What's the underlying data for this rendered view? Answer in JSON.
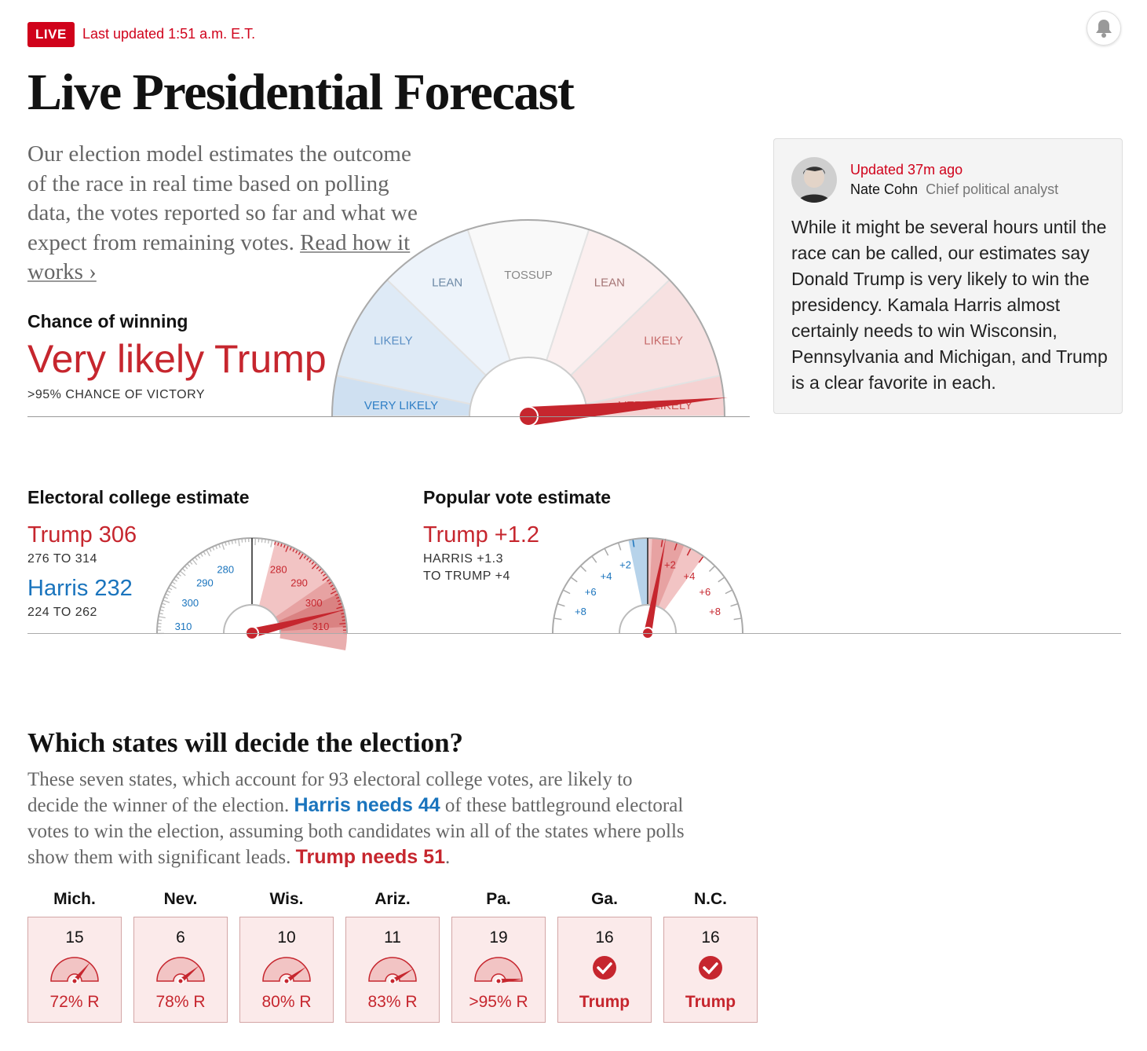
{
  "header": {
    "live_badge": "LIVE",
    "updated": "Last updated 1:51 a.m. E.T.",
    "title": "Live Presidential Forecast"
  },
  "intro": {
    "text": "Our election model estimates the outcome of the race in real time based on polling data, the votes reported so far and what we expect from remaining votes. ",
    "link": "Read how it works ›"
  },
  "chance": {
    "heading": "Chance of winning",
    "value": "Very likely Trump",
    "sub": ">95% CHANCE OF VICTORY",
    "gauge_labels": {
      "blue_very_likely": "VERY LIKELY",
      "blue_likely": "LIKELY",
      "blue_lean": "LEAN",
      "tossup": "TOSSUP",
      "red_lean": "LEAN",
      "red_likely": "LIKELY",
      "red_very_likely": "VERY LIKELY"
    },
    "needle_trump_probability": 0.97
  },
  "analyst": {
    "updated": "Updated 37m ago",
    "name": "Nate Cohn",
    "role": "Chief political analyst",
    "body": "While it might be several hours until the race can be called, our estimates say Donald Trump is very likely to win the presidency. Kamala Harris almost certainly needs to win Wisconsin, Pennsylvania and Michigan, and Trump is a clear favorite in each."
  },
  "electoral": {
    "heading": "Electoral college estimate",
    "trump": "Trump 306",
    "trump_range": "276 TO 314",
    "harris": "Harris 232",
    "harris_range": "224 TO 262",
    "trump_value": 306,
    "trump_low": 276,
    "trump_high": 314,
    "tick_labels": [
      "280",
      "290",
      "300",
      "310"
    ]
  },
  "popular": {
    "heading": "Popular vote estimate",
    "value": "Trump +1.2",
    "range_line1": "HARRIS +1.3",
    "range_line2": "TO TRUMP +4",
    "margin": 1.2,
    "low": -1.3,
    "high": 4,
    "tick_labels": [
      "+2",
      "+4",
      "+6",
      "+8"
    ]
  },
  "states_section": {
    "heading": "Which states will decide the election?",
    "p1": "These seven states, which account for 93 electoral college votes, are likely to decide the winner of the election. ",
    "harris_needs": "Harris needs 44",
    "p2": " of these battleground electoral votes to win the election, assuming both candidates win all of the states where polls show them with significant leads. ",
    "trump_needs": "Trump needs 51",
    "p3": ".",
    "states": [
      {
        "abbr": "Mich.",
        "ev": "15",
        "result": "72% R",
        "prob": 0.72,
        "called": false
      },
      {
        "abbr": "Nev.",
        "ev": "6",
        "result": "78% R",
        "prob": 0.78,
        "called": false
      },
      {
        "abbr": "Wis.",
        "ev": "10",
        "result": "80% R",
        "prob": 0.8,
        "called": false
      },
      {
        "abbr": "Ariz.",
        "ev": "11",
        "result": "83% R",
        "prob": 0.83,
        "called": false
      },
      {
        "abbr": "Pa.",
        "ev": "19",
        "result": ">95% R",
        "prob": 0.97,
        "called": false
      },
      {
        "abbr": "Ga.",
        "ev": "16",
        "result": "Trump",
        "prob": 1,
        "called": true
      },
      {
        "abbr": "N.C.",
        "ev": "16",
        "result": "Trump",
        "prob": 1,
        "called": true
      }
    ]
  },
  "colors": {
    "red": "#c6262e",
    "blue": "#1a74bd",
    "live": "#d0021b"
  }
}
